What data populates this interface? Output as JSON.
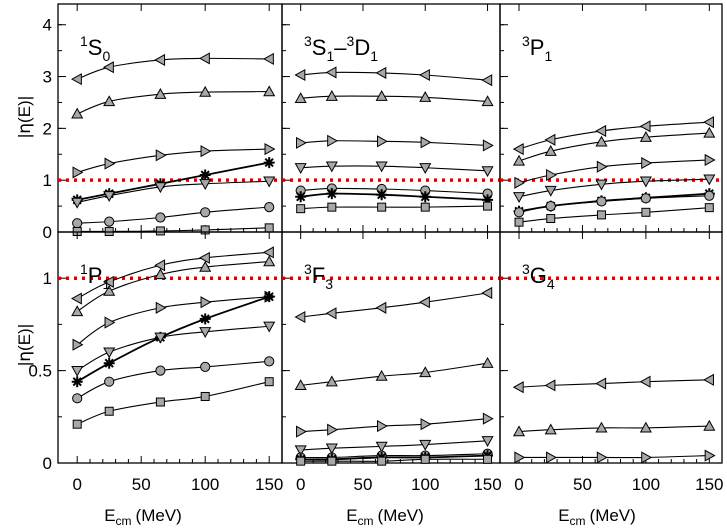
{
  "chart_data": {
    "type": "line",
    "x_energies": [
      0,
      25,
      65,
      100,
      150
    ],
    "xlabel_main": "E",
    "xlabel_sub": "cm",
    "xlabel_unit": "(MeV)",
    "ylabel_pre": "|",
    "ylabel_eta": "η",
    "ylabel_post": "(E)|",
    "x_ticks": [
      "0",
      "50",
      "100",
      "150"
    ],
    "top_y_ticks": [
      "0",
      "1",
      "2",
      "3",
      "4"
    ],
    "bottom_y_ticks": [
      "0",
      "0.5",
      "1"
    ],
    "reference_line": 1,
    "panels": [
      {
        "label_sup": "1",
        "label_main": "S",
        "label_sub": "0",
        "label_rest_sup": "",
        "label_rest_main": "",
        "label_rest_sub": "",
        "ylim": [
          0,
          4.4
        ],
        "series": [
          {
            "marker": "tri-left",
            "values": [
              2.95,
              3.18,
              3.32,
              3.35,
              3.34
            ]
          },
          {
            "marker": "tri-up",
            "values": [
              2.28,
              2.52,
              2.66,
              2.7,
              2.71
            ]
          },
          {
            "marker": "tri-right",
            "values": [
              1.15,
              1.32,
              1.48,
              1.56,
              1.6
            ]
          },
          {
            "marker": "star",
            "values": [
              0.62,
              0.74,
              0.93,
              1.1,
              1.34
            ]
          },
          {
            "marker": "tri-down",
            "values": [
              0.57,
              0.7,
              0.87,
              0.93,
              0.98
            ]
          },
          {
            "marker": "circle",
            "values": [
              0.17,
              0.2,
              0.28,
              0.38,
              0.48
            ]
          },
          {
            "marker": "square",
            "values": [
              0.01,
              0.01,
              0.02,
              0.04,
              0.08
            ]
          }
        ]
      },
      {
        "label_sup": "3",
        "label_main": "S",
        "label_sub": "1",
        "label_rest_sup": "3",
        "label_rest_main": "D",
        "label_rest_sub": "1",
        "ylim": [
          0,
          4.4
        ],
        "series": [
          {
            "marker": "tri-left",
            "values": [
              3.03,
              3.08,
              3.07,
              3.03,
              2.93
            ]
          },
          {
            "marker": "tri-up",
            "values": [
              2.58,
              2.62,
              2.62,
              2.6,
              2.52
            ]
          },
          {
            "marker": "tri-right",
            "values": [
              1.72,
              1.76,
              1.75,
              1.73,
              1.67
            ]
          },
          {
            "marker": "tri-down",
            "values": [
              1.24,
              1.27,
              1.27,
              1.24,
              1.18
            ]
          },
          {
            "marker": "circle",
            "values": [
              0.8,
              0.84,
              0.83,
              0.8,
              0.74
            ]
          },
          {
            "marker": "star",
            "values": [
              0.68,
              0.74,
              0.72,
              0.68,
              0.62
            ]
          },
          {
            "marker": "square",
            "values": [
              0.45,
              0.48,
              0.48,
              0.48,
              0.5
            ]
          }
        ]
      },
      {
        "label_sup": "3",
        "label_main": "P",
        "label_sub": "1",
        "label_rest_sup": "",
        "label_rest_main": "",
        "label_rest_sub": "",
        "ylim": [
          0,
          4.4
        ],
        "series": [
          {
            "marker": "tri-left",
            "values": [
              1.6,
              1.78,
              1.95,
              2.04,
              2.12
            ]
          },
          {
            "marker": "tri-up",
            "values": [
              1.37,
              1.56,
              1.74,
              1.83,
              1.91
            ]
          },
          {
            "marker": "tri-right",
            "values": [
              0.95,
              1.1,
              1.26,
              1.33,
              1.39
            ]
          },
          {
            "marker": "tri-down",
            "values": [
              0.68,
              0.8,
              0.92,
              0.98,
              1.02
            ]
          },
          {
            "marker": "star",
            "values": [
              0.4,
              0.5,
              0.6,
              0.66,
              0.74
            ]
          },
          {
            "marker": "circle",
            "values": [
              0.38,
              0.5,
              0.59,
              0.65,
              0.7
            ]
          },
          {
            "marker": "square",
            "values": [
              0.19,
              0.26,
              0.33,
              0.38,
              0.47
            ]
          }
        ]
      },
      {
        "label_sup": "1",
        "label_main": "P",
        "label_sub": "1",
        "label_rest_sup": "",
        "label_rest_main": "",
        "label_rest_sub": "",
        "ylim": [
          0,
          1.25
        ],
        "series": [
          {
            "marker": "tri-left",
            "values": [
              0.89,
              0.98,
              1.07,
              1.11,
              1.14
            ]
          },
          {
            "marker": "tri-up",
            "values": [
              0.82,
              0.93,
              1.02,
              1.06,
              1.09
            ]
          },
          {
            "marker": "tri-right",
            "values": [
              0.64,
              0.76,
              0.84,
              0.87,
              0.9
            ]
          },
          {
            "marker": "star",
            "values": [
              0.44,
              0.54,
              0.68,
              0.78,
              0.9
            ]
          },
          {
            "marker": "tri-down",
            "values": [
              0.5,
              0.6,
              0.68,
              0.71,
              0.74
            ]
          },
          {
            "marker": "circle",
            "values": [
              0.35,
              0.44,
              0.5,
              0.52,
              0.55
            ]
          },
          {
            "marker": "square",
            "values": [
              0.21,
              0.28,
              0.33,
              0.36,
              0.44
            ]
          }
        ]
      },
      {
        "label_sup": "3",
        "label_main": "F",
        "label_sub": "3",
        "label_rest_sup": "",
        "label_rest_main": "",
        "label_rest_sub": "",
        "ylim": [
          0,
          1.25
        ],
        "series": [
          {
            "marker": "tri-left",
            "values": [
              0.79,
              0.81,
              0.84,
              0.87,
              0.92
            ]
          },
          {
            "marker": "tri-up",
            "values": [
              0.42,
              0.44,
              0.47,
              0.49,
              0.54
            ]
          },
          {
            "marker": "tri-right",
            "values": [
              0.17,
              0.18,
              0.2,
              0.21,
              0.24
            ]
          },
          {
            "marker": "tri-down",
            "values": [
              0.07,
              0.08,
              0.09,
              0.1,
              0.12
            ]
          },
          {
            "marker": "circle",
            "values": [
              0.03,
              0.03,
              0.04,
              0.04,
              0.05
            ]
          },
          {
            "marker": "star",
            "values": [
              0.02,
              0.02,
              0.03,
              0.03,
              0.04
            ]
          },
          {
            "marker": "square",
            "values": [
              0.01,
              0.01,
              0.01,
              0.02,
              0.02
            ]
          }
        ]
      },
      {
        "label_sup": "3",
        "label_main": "G",
        "label_sub": "4",
        "label_rest_sup": "",
        "label_rest_main": "",
        "label_rest_sub": "",
        "ylim": [
          0,
          1.25
        ],
        "series": [
          {
            "marker": "tri-left",
            "values": [
              0.41,
              0.42,
              0.43,
              0.44,
              0.45
            ]
          },
          {
            "marker": "tri-up",
            "values": [
              0.17,
              0.18,
              0.19,
              0.19,
              0.2
            ]
          },
          {
            "marker": "tri-right",
            "values": [
              0.03,
              0.03,
              0.03,
              0.03,
              0.04
            ]
          }
        ]
      }
    ],
    "colors": {
      "marker_fill": "#a8a8a8",
      "line": "#000000",
      "reference": "#e00000"
    }
  }
}
